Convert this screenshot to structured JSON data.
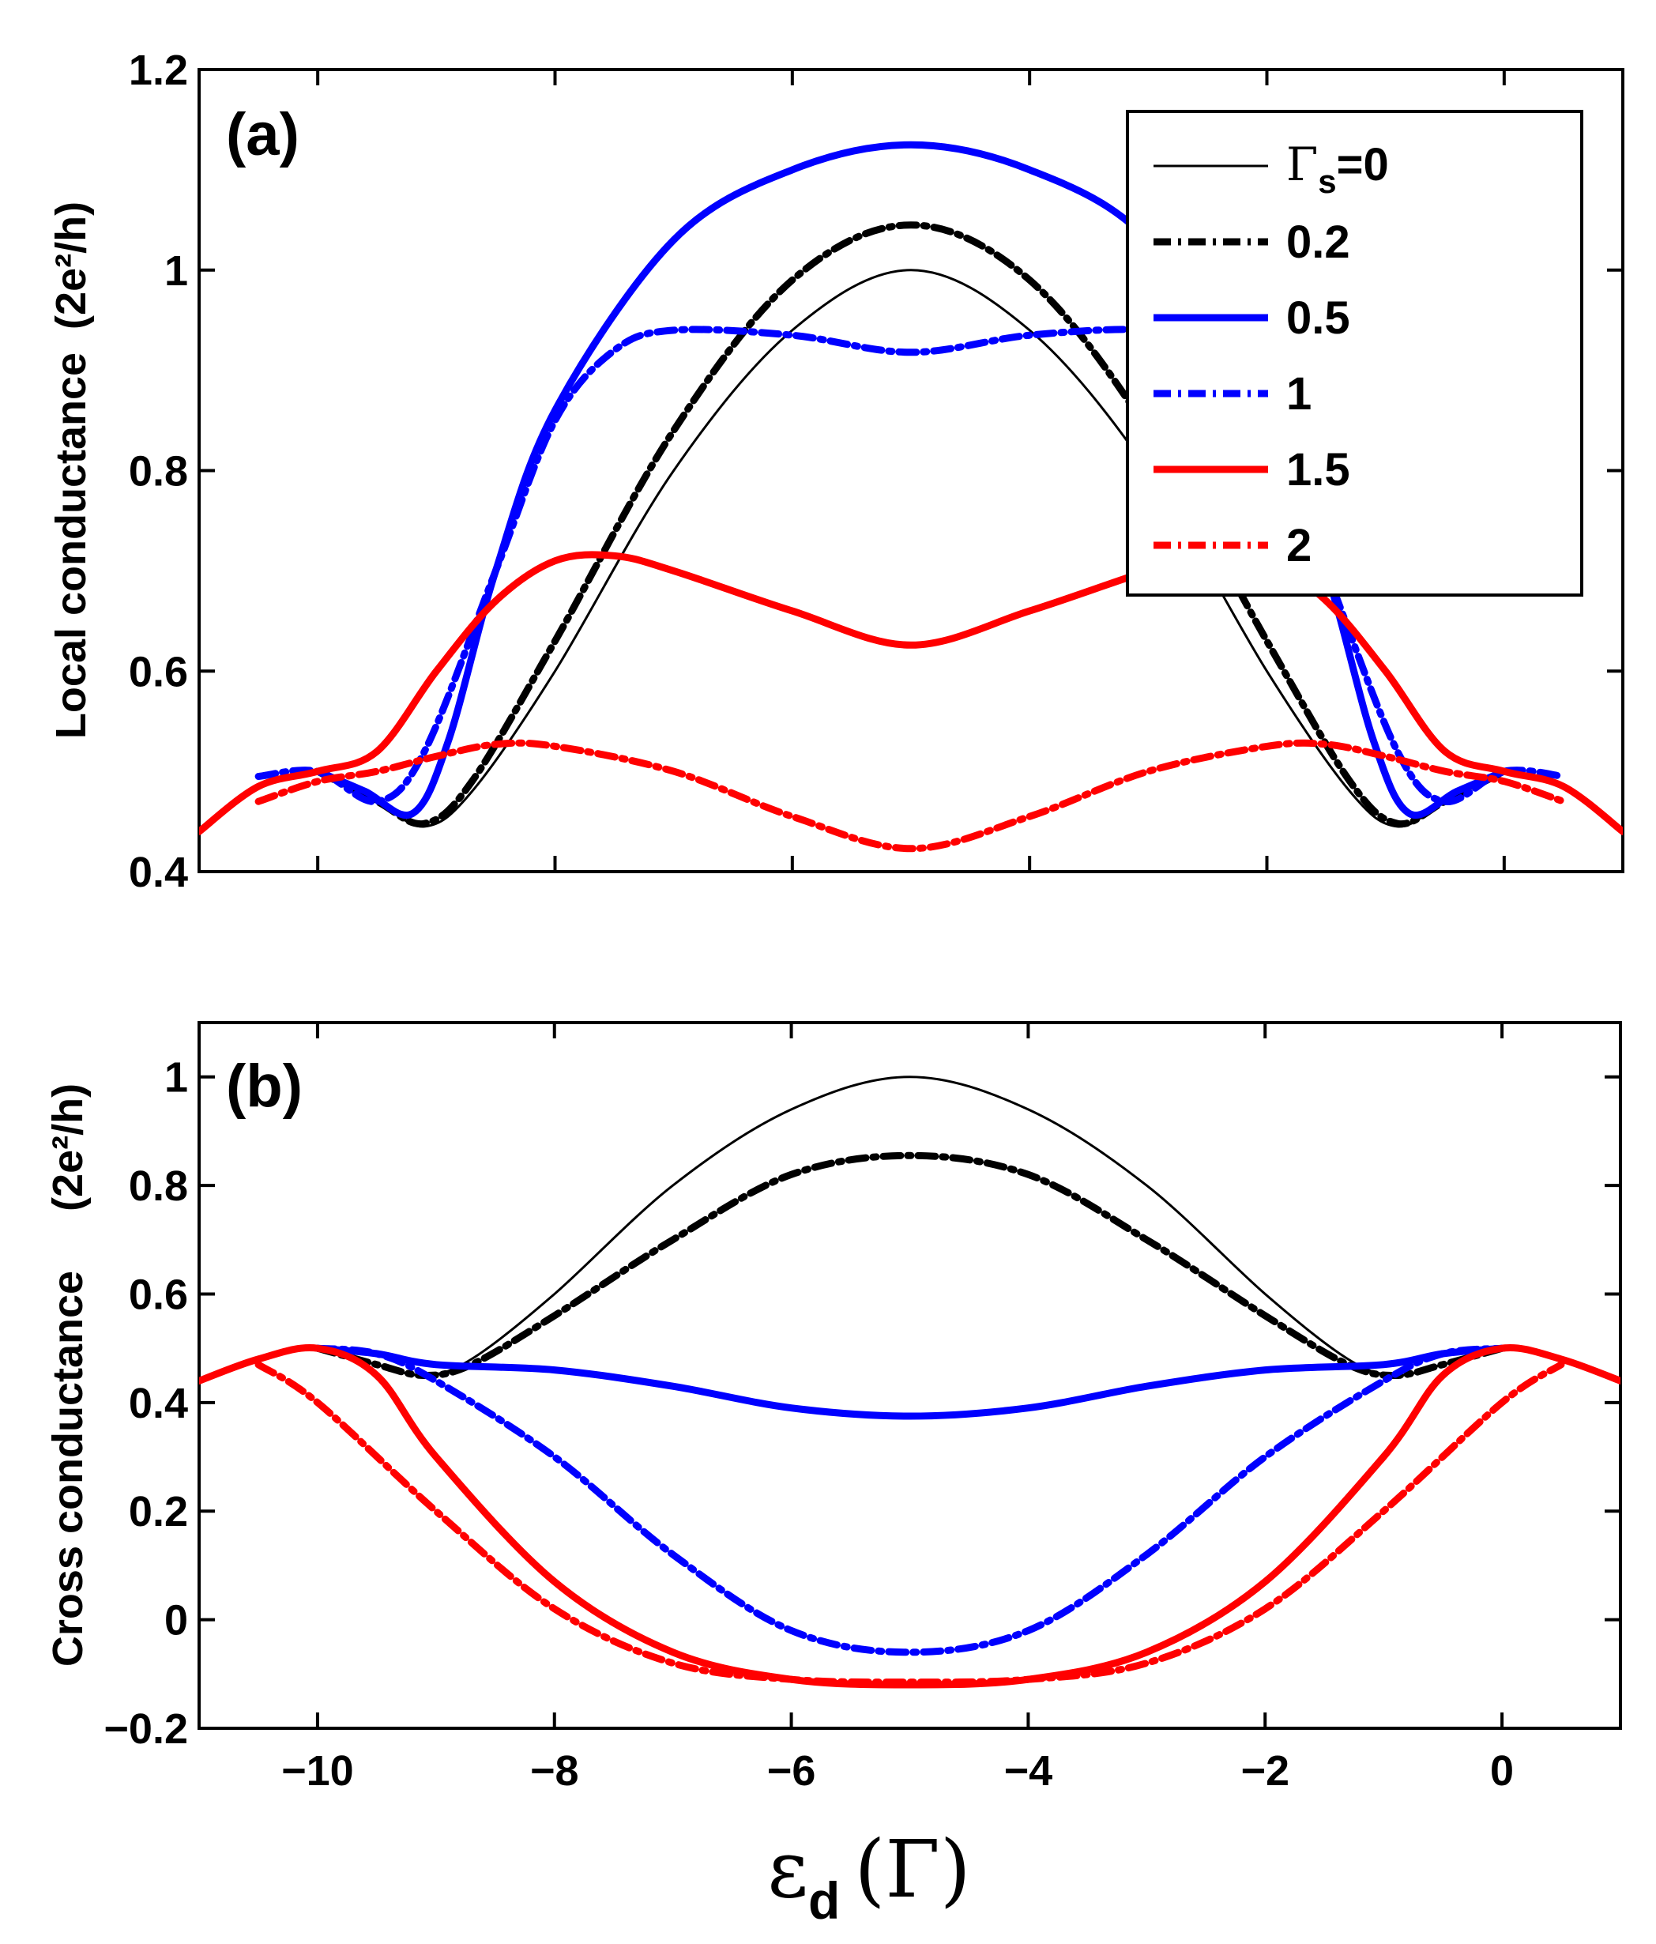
{
  "chart_data": [
    {
      "type": "line",
      "panel_label": "(a)",
      "ylabel": "Local conductance",
      "ylabel_unit": "(2e²/h)",
      "ylim": [
        0.4,
        1.2
      ],
      "xlim": [
        -11,
        1
      ],
      "yticks": [
        "0.4",
        "0.6",
        "0.8",
        "1",
        "1.2"
      ],
      "legend_title_symbol": "Γ",
      "legend_title_sub": "s",
      "legend_title_eq": "=0",
      "legend": [
        "0",
        "0.2",
        "0.5",
        "1",
        "1.5",
        "2"
      ],
      "series": [
        {
          "name": "0",
          "color": "#000000",
          "style": "solid",
          "width": "thin",
          "points": [
            [
              -10,
              0.5
            ],
            [
              -9.5,
              0.47
            ],
            [
              -9.1,
              0.445
            ],
            [
              -8.7,
              0.48
            ],
            [
              -8,
              0.6
            ],
            [
              -7,
              0.8
            ],
            [
              -6,
              0.94
            ],
            [
              -5,
              1.0
            ],
            [
              -4,
              0.94
            ],
            [
              -3,
              0.8
            ],
            [
              -2,
              0.6
            ],
            [
              -1.3,
              0.48
            ],
            [
              -0.9,
              0.445
            ],
            [
              -0.5,
              0.47
            ],
            [
              0,
              0.5
            ]
          ]
        },
        {
          "name": "0.2",
          "color": "#000000",
          "style": "dashdot",
          "width": "thick",
          "points": [
            [
              -10,
              0.5
            ],
            [
              -9.5,
              0.47
            ],
            [
              -9.1,
              0.448
            ],
            [
              -8.7,
              0.49
            ],
            [
              -8,
              0.63
            ],
            [
              -7,
              0.84
            ],
            [
              -6,
              0.99
            ],
            [
              -5,
              1.045
            ],
            [
              -4,
              0.99
            ],
            [
              -3,
              0.84
            ],
            [
              -2,
              0.63
            ],
            [
              -1.3,
              0.49
            ],
            [
              -0.9,
              0.448
            ],
            [
              -0.5,
              0.47
            ],
            [
              0,
              0.5
            ]
          ]
        },
        {
          "name": "0.5",
          "color": "#0000ff",
          "style": "solid",
          "width": "thick",
          "points": [
            [
              -10,
              0.5
            ],
            [
              -9.6,
              0.48
            ],
            [
              -9.2,
              0.458
            ],
            [
              -8.9,
              0.53
            ],
            [
              -8.5,
              0.7
            ],
            [
              -8,
              0.86
            ],
            [
              -7,
              1.03
            ],
            [
              -6,
              1.1
            ],
            [
              -5,
              1.125
            ],
            [
              -4,
              1.1
            ],
            [
              -3,
              1.03
            ],
            [
              -2,
              0.86
            ],
            [
              -1.5,
              0.7
            ],
            [
              -1.1,
              0.53
            ],
            [
              -0.8,
              0.458
            ],
            [
              -0.4,
              0.48
            ],
            [
              0,
              0.5
            ]
          ]
        },
        {
          "name": "1",
          "color": "#0000ff",
          "style": "dashdot",
          "width": "thick",
          "points": [
            [
              -10.5,
              0.495
            ],
            [
              -10,
              0.5
            ],
            [
              -9.5,
              0.47
            ],
            [
              -9.1,
              0.52
            ],
            [
              -8.5,
              0.7
            ],
            [
              -8,
              0.85
            ],
            [
              -7.5,
              0.92
            ],
            [
              -7,
              0.94
            ],
            [
              -6,
              0.935
            ],
            [
              -5,
              0.918
            ],
            [
              -4,
              0.935
            ],
            [
              -3,
              0.94
            ],
            [
              -2.5,
              0.92
            ],
            [
              -2,
              0.85
            ],
            [
              -1.5,
              0.7
            ],
            [
              -0.9,
              0.52
            ],
            [
              -0.5,
              0.47
            ],
            [
              0,
              0.5
            ],
            [
              0.5,
              0.495
            ]
          ]
        },
        {
          "name": "1.5",
          "color": "#ff0000",
          "style": "solid",
          "width": "thick",
          "points": [
            [
              -11,
              0.44
            ],
            [
              -10.5,
              0.485
            ],
            [
              -10,
              0.5
            ],
            [
              -9.5,
              0.52
            ],
            [
              -9,
              0.6
            ],
            [
              -8.5,
              0.67
            ],
            [
              -8,
              0.71
            ],
            [
              -7.5,
              0.715
            ],
            [
              -7,
              0.7
            ],
            [
              -6,
              0.66
            ],
            [
              -5,
              0.626
            ],
            [
              -4,
              0.66
            ],
            [
              -3,
              0.7
            ],
            [
              -2.5,
              0.715
            ],
            [
              -2,
              0.71
            ],
            [
              -1.5,
              0.67
            ],
            [
              -1,
              0.6
            ],
            [
              -0.5,
              0.52
            ],
            [
              0,
              0.5
            ],
            [
              0.5,
              0.485
            ],
            [
              1,
              0.44
            ]
          ]
        },
        {
          "name": "2",
          "color": "#ff0000",
          "style": "dashdot",
          "width": "thick",
          "points": [
            [
              -10.5,
              0.47
            ],
            [
              -10,
              0.49
            ],
            [
              -9.5,
              0.5
            ],
            [
              -9,
              0.515
            ],
            [
              -8.5,
              0.527
            ],
            [
              -8,
              0.525
            ],
            [
              -7,
              0.5
            ],
            [
              -6,
              0.455
            ],
            [
              -5,
              0.423
            ],
            [
              -4,
              0.455
            ],
            [
              -3,
              0.5
            ],
            [
              -2,
              0.525
            ],
            [
              -1.5,
              0.527
            ],
            [
              -1,
              0.515
            ],
            [
              -0.5,
              0.5
            ],
            [
              0,
              0.49
            ],
            [
              0.5,
              0.47
            ]
          ]
        }
      ]
    },
    {
      "type": "line",
      "panel_label": "(b)",
      "ylabel": "Cross conductance",
      "ylabel_unit": "(2e²/h)",
      "ylim": [
        -0.2,
        1.1
      ],
      "xlim": [
        -11,
        1
      ],
      "xticks": [
        "−10",
        "−8",
        "−6",
        "−4",
        "−2",
        "0"
      ],
      "yticks": [
        "−0.2",
        "0",
        "0.2",
        "0.4",
        "0.6",
        "0.8",
        "1"
      ],
      "xlabel_symbol": "ε",
      "xlabel_sub": "d",
      "xlabel_unit": "(Γ)",
      "series": [
        {
          "name": "0",
          "color": "#000000",
          "style": "solid",
          "width": "thin",
          "points": [
            [
              -10,
              0.5
            ],
            [
              -9.5,
              0.47
            ],
            [
              -9.1,
              0.45
            ],
            [
              -8.7,
              0.48
            ],
            [
              -8,
              0.6
            ],
            [
              -7,
              0.8
            ],
            [
              -6,
              0.94
            ],
            [
              -5,
              1.0
            ],
            [
              -4,
              0.94
            ],
            [
              -3,
              0.8
            ],
            [
              -2,
              0.6
            ],
            [
              -1.3,
              0.48
            ],
            [
              -0.9,
              0.45
            ],
            [
              -0.5,
              0.47
            ],
            [
              0,
              0.5
            ]
          ]
        },
        {
          "name": "0.2",
          "color": "#000000",
          "style": "dashdot",
          "width": "thick",
          "points": [
            [
              -10,
              0.5
            ],
            [
              -9.5,
              0.47
            ],
            [
              -9.1,
              0.45
            ],
            [
              -8.7,
              0.47
            ],
            [
              -8,
              0.56
            ],
            [
              -7,
              0.7
            ],
            [
              -6,
              0.82
            ],
            [
              -5,
              0.855
            ],
            [
              -4,
              0.82
            ],
            [
              -3,
              0.7
            ],
            [
              -2,
              0.56
            ],
            [
              -1.3,
              0.47
            ],
            [
              -0.9,
              0.45
            ],
            [
              -0.5,
              0.47
            ],
            [
              0,
              0.5
            ]
          ]
        },
        {
          "name": "0.5",
          "color": "#0000ff",
          "style": "solid",
          "width": "thick",
          "points": [
            [
              -10,
              0.5
            ],
            [
              -9.5,
              0.49
            ],
            [
              -9,
              0.47
            ],
            [
              -8,
              0.46
            ],
            [
              -7,
              0.43
            ],
            [
              -6,
              0.39
            ],
            [
              -5,
              0.375
            ],
            [
              -4,
              0.39
            ],
            [
              -3,
              0.43
            ],
            [
              -2,
              0.46
            ],
            [
              -1,
              0.47
            ],
            [
              -0.5,
              0.49
            ],
            [
              0,
              0.5
            ]
          ]
        },
        {
          "name": "1",
          "color": "#0000ff",
          "style": "dashdot",
          "width": "thick",
          "points": [
            [
              -10,
              0.5
            ],
            [
              -9.5,
              0.49
            ],
            [
              -9,
              0.44
            ],
            [
              -8,
              0.3
            ],
            [
              -7,
              0.12
            ],
            [
              -6,
              -0.02
            ],
            [
              -5,
              -0.06
            ],
            [
              -4,
              -0.02
            ],
            [
              -3,
              0.12
            ],
            [
              -2,
              0.3
            ],
            [
              -1,
              0.44
            ],
            [
              -0.5,
              0.49
            ],
            [
              0,
              0.5
            ]
          ]
        },
        {
          "name": "1.5",
          "color": "#ff0000",
          "style": "solid",
          "width": "thick",
          "points": [
            [
              -11,
              0.44
            ],
            [
              -10.5,
              0.48
            ],
            [
              -10,
              0.5
            ],
            [
              -9.5,
              0.45
            ],
            [
              -9,
              0.3
            ],
            [
              -8,
              0.07
            ],
            [
              -7,
              -0.06
            ],
            [
              -6,
              -0.11
            ],
            [
              -5,
              -0.12
            ],
            [
              -4,
              -0.11
            ],
            [
              -3,
              -0.06
            ],
            [
              -2,
              0.07
            ],
            [
              -1,
              0.3
            ],
            [
              -0.5,
              0.45
            ],
            [
              0,
              0.5
            ],
            [
              0.5,
              0.48
            ],
            [
              1,
              0.44
            ]
          ]
        },
        {
          "name": "2",
          "color": "#ff0000",
          "style": "dashdot",
          "width": "thick",
          "points": [
            [
              -10.5,
              0.47
            ],
            [
              -10,
              0.4
            ],
            [
              -9,
              0.2
            ],
            [
              -8,
              0.02
            ],
            [
              -7,
              -0.08
            ],
            [
              -6,
              -0.11
            ],
            [
              -5,
              -0.115
            ],
            [
              -4,
              -0.11
            ],
            [
              -3,
              -0.08
            ],
            [
              -2,
              0.02
            ],
            [
              -1,
              0.2
            ],
            [
              0,
              0.4
            ],
            [
              0.5,
              0.47
            ]
          ]
        }
      ]
    }
  ]
}
